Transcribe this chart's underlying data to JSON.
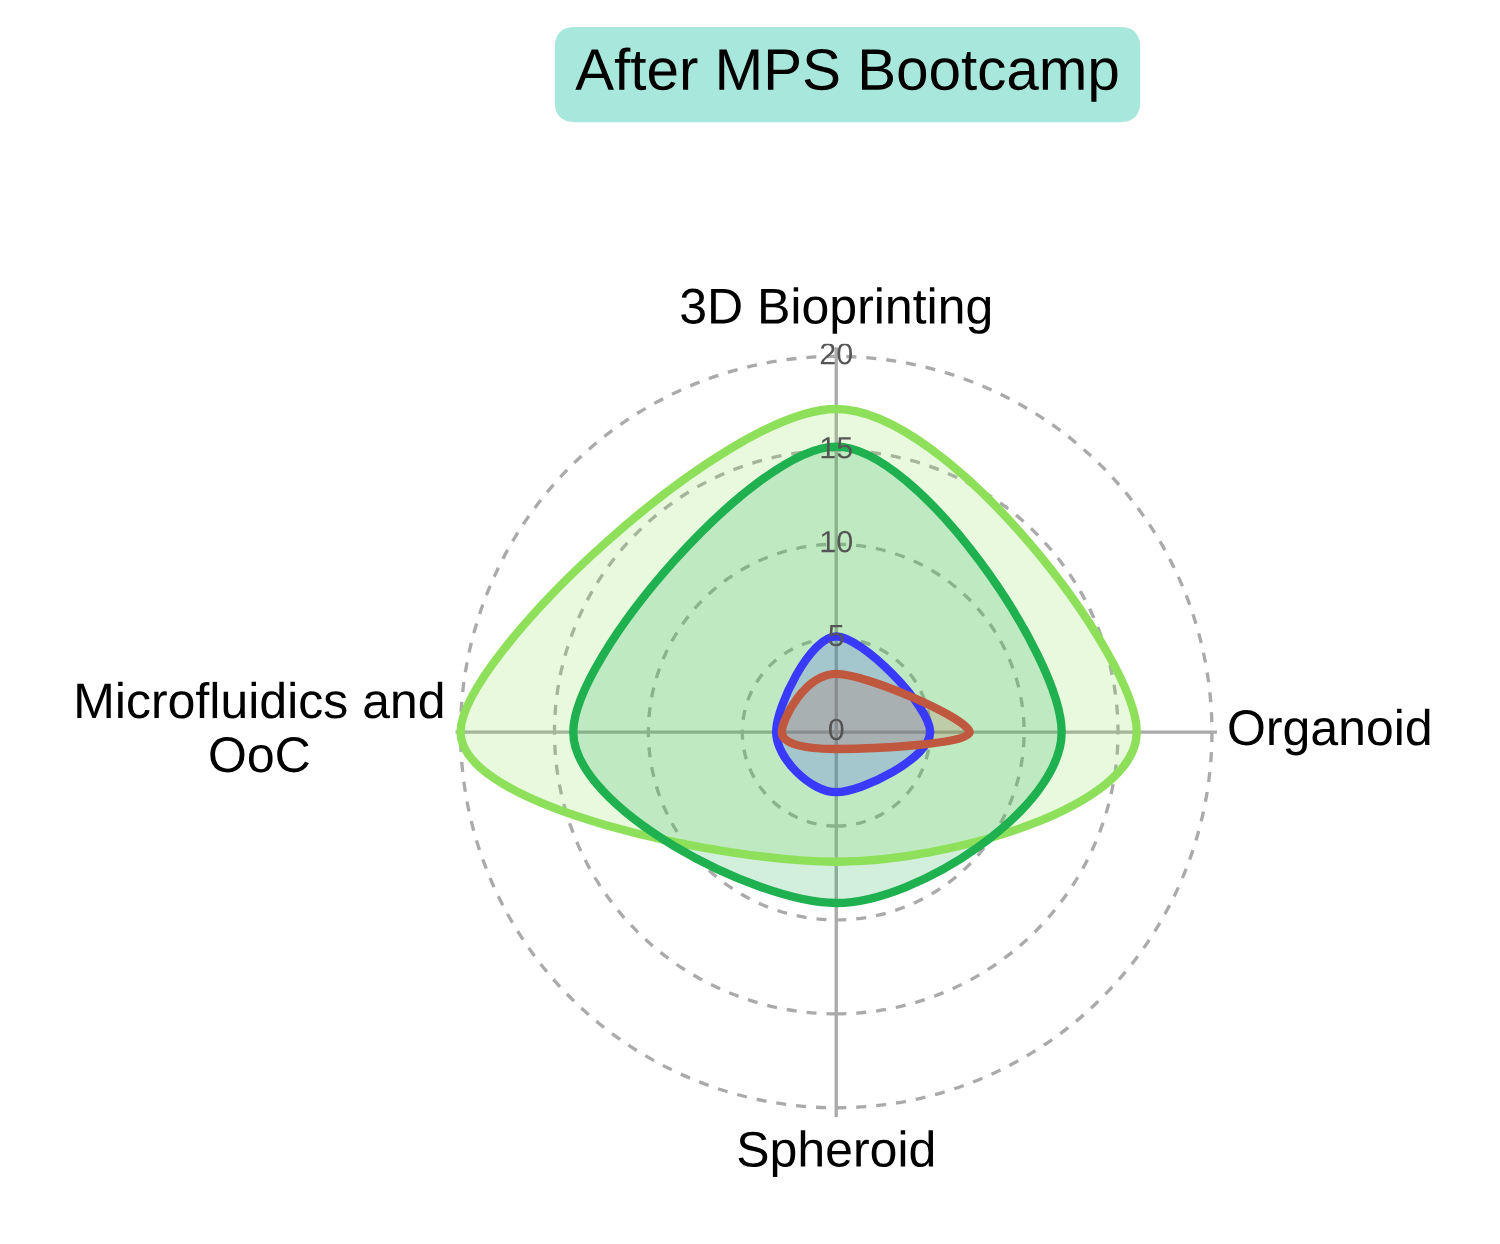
{
  "chart_data": {
    "type": "radar",
    "title": "After MPS Bootcamp",
    "categories": [
      "3D Bioprinting",
      "Organoid",
      "Spheroid",
      "Microfluidics and\nOoC"
    ],
    "series": [
      {
        "color": "#8ee05a",
        "values": [
          17.2,
          16,
          6.9,
          20
        ]
      },
      {
        "color": "#1fb050",
        "values": [
          15.2,
          12,
          9.1,
          14
        ]
      },
      {
        "color": "#3a3aff",
        "values": [
          5.1,
          5,
          3.2,
          3.2
        ]
      },
      {
        "color": "#c0573f",
        "values": [
          3.1,
          7.1,
          0.9,
          2.9
        ]
      }
    ],
    "ylim": [
      0,
      20
    ],
    "yticks": [
      0,
      5,
      10,
      15,
      20
    ],
    "grid": true,
    "legend": false
  }
}
